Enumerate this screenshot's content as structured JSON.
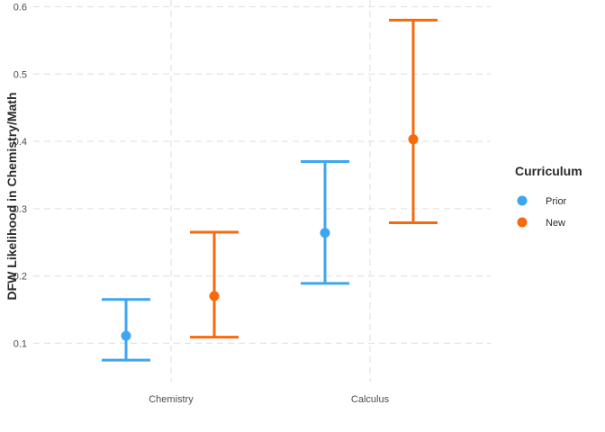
{
  "chart_data": {
    "type": "errorbar",
    "title": "",
    "xlabel": "",
    "ylabel": "DFW Likelihood in Chemistry/Math",
    "categories": [
      "Chemistry",
      "Calculus"
    ],
    "ylim": [
      0.043,
      0.61
    ],
    "yticks": [
      0.1,
      0.2,
      0.3,
      0.4,
      0.5,
      0.6
    ],
    "ytick_labels": [
      "0.1",
      "0.2",
      "0.3",
      "0.4",
      "0.5",
      "0.6"
    ],
    "grid": true,
    "legend": {
      "title": "Curriculum",
      "position": "right"
    },
    "series": [
      {
        "name": "Prior",
        "color": "#3ea6f0",
        "points": [
          {
            "category": "Chemistry",
            "estimate": 0.111,
            "lower": 0.075,
            "upper": 0.165
          },
          {
            "category": "Calculus",
            "estimate": 0.264,
            "lower": 0.189,
            "upper": 0.37
          }
        ]
      },
      {
        "name": "New",
        "color": "#f8690d",
        "points": [
          {
            "category": "Chemistry",
            "estimate": 0.17,
            "lower": 0.109,
            "upper": 0.265
          },
          {
            "category": "Calculus",
            "estimate": 0.403,
            "lower": 0.279,
            "upper": 0.58
          }
        ]
      }
    ]
  }
}
